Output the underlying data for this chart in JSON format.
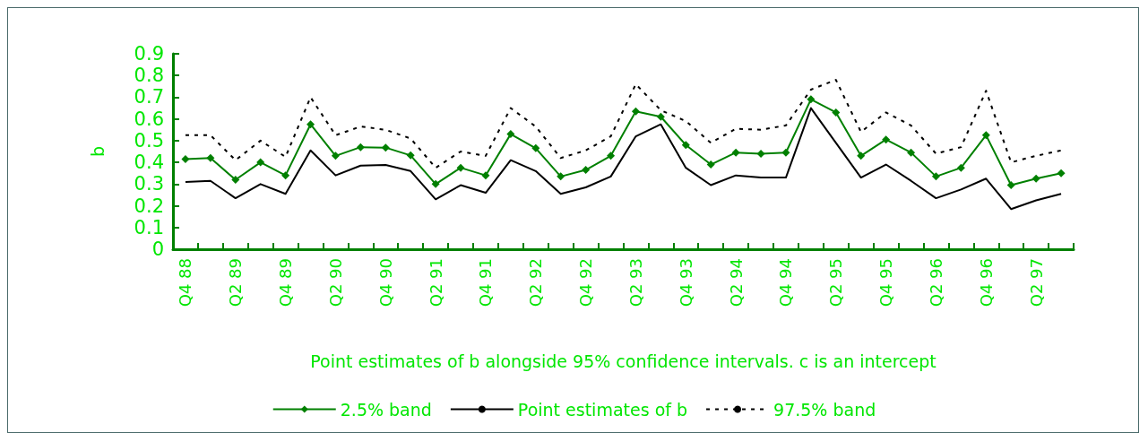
{
  "chart_data": {
    "type": "line",
    "xlabel": "Point estimates of b alongside 95% confidence intervals. c is an intercept",
    "ylabel": "b",
    "categories": [
      "Q4 88",
      null,
      "Q2 89",
      null,
      "Q4 89",
      null,
      "Q2 90",
      null,
      "Q4 90",
      null,
      "Q2 91",
      null,
      "Q4 91",
      null,
      "Q2 92",
      null,
      "Q4 92",
      null,
      "Q2 93",
      null,
      "Q4 93",
      null,
      "Q2 94",
      null,
      "Q4 94",
      null,
      "Q2 95",
      null,
      "Q4 95",
      null,
      "Q2 96",
      null,
      "Q4 96",
      null,
      "Q2 97",
      null
    ],
    "series": [
      {
        "name": "2.5% band",
        "color": "#008000",
        "marker": "diamond",
        "line_style": "solid",
        "values": [
          0.415,
          0.42,
          0.32,
          0.4,
          0.34,
          0.575,
          0.43,
          0.47,
          0.468,
          0.432,
          0.3,
          0.375,
          0.34,
          0.53,
          0.465,
          0.335,
          0.365,
          0.43,
          0.635,
          0.61,
          0.48,
          0.39,
          0.445,
          0.44,
          0.445,
          0.69,
          0.63,
          0.43,
          0.505,
          0.445,
          0.335,
          0.375,
          0.525,
          0.295,
          0.325,
          0.35
        ]
      },
      {
        "name": "Point estimates of b",
        "color": "#000000",
        "marker": "none",
        "line_style": "solid",
        "values": [
          0.31,
          0.315,
          0.235,
          0.3,
          0.255,
          0.455,
          0.34,
          0.385,
          0.388,
          0.36,
          0.23,
          0.295,
          0.26,
          0.41,
          0.36,
          0.255,
          0.285,
          0.335,
          0.52,
          0.575,
          0.375,
          0.295,
          0.34,
          0.33,
          0.33,
          0.65,
          0.49,
          0.33,
          0.39,
          0.315,
          0.235,
          0.275,
          0.325,
          0.185,
          0.225,
          0.255
        ]
      },
      {
        "name": "97.5% band",
        "color": "#000000",
        "marker": "none",
        "line_style": "dashed",
        "values": [
          0.525,
          0.525,
          0.41,
          0.5,
          0.425,
          0.7,
          0.525,
          0.565,
          0.55,
          0.51,
          0.375,
          0.45,
          0.43,
          0.65,
          0.565,
          0.42,
          0.455,
          0.52,
          0.76,
          0.64,
          0.59,
          0.49,
          0.555,
          0.55,
          0.57,
          0.735,
          0.78,
          0.54,
          0.63,
          0.57,
          0.44,
          0.47,
          0.73,
          0.4,
          0.43,
          0.455
        ]
      }
    ],
    "ylim": [
      0,
      0.9
    ],
    "yticks": [
      0,
      0.1,
      0.2,
      0.3,
      0.4,
      0.5,
      0.6,
      0.7,
      0.8,
      0.9
    ],
    "grid": false,
    "legend": "bottom"
  }
}
